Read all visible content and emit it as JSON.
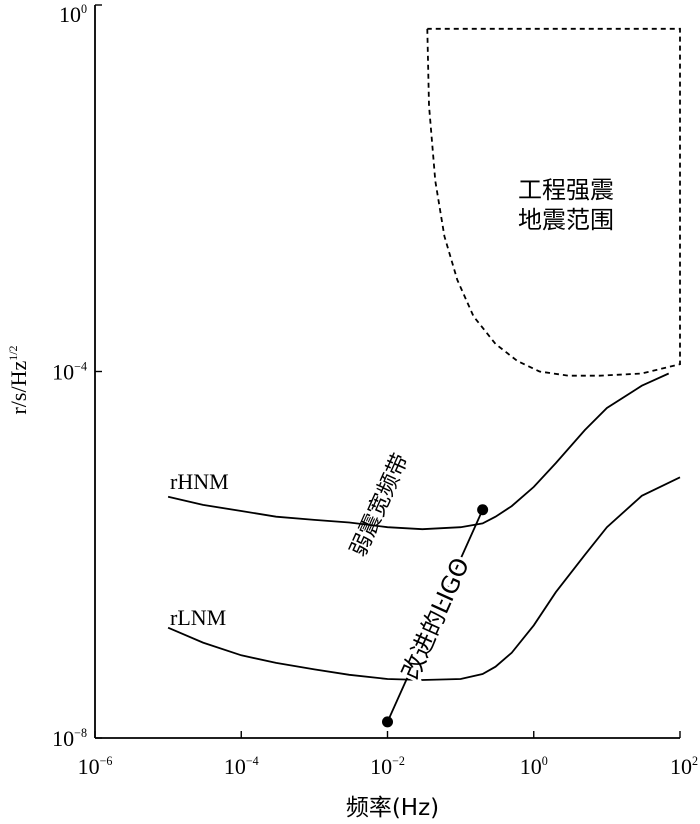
{
  "chart_data": {
    "type": "line",
    "xscale": "log",
    "yscale": "log",
    "xlim": [
      1e-06,
      100
    ],
    "ylim": [
      1e-08,
      1
    ],
    "xlabel": "频率(Hz)",
    "ylabel": "r/s/Hz^1/2",
    "ylabel_parts": {
      "base": "r/s/Hz",
      "sup": "1/2"
    },
    "xticks": [
      {
        "value": 1e-06,
        "base": "10",
        "exp": "−6"
      },
      {
        "value": 0.0001,
        "base": "10",
        "exp": "−4"
      },
      {
        "value": 0.01,
        "base": "10",
        "exp": "−2"
      },
      {
        "value": 1,
        "base": "10",
        "exp": "0"
      },
      {
        "value": 100,
        "base": "10",
        "exp": "2"
      }
    ],
    "yticks": [
      {
        "value": 1e-08,
        "base": "10",
        "exp": "−8"
      },
      {
        "value": 0.0001,
        "base": "10",
        "exp": "−4"
      },
      {
        "value": 1,
        "base": "10",
        "exp": "0"
      }
    ],
    "series": [
      {
        "name": "rHNM",
        "x": [
          1e-05,
          3e-05,
          0.0001,
          0.0003,
          0.001,
          0.003,
          0.01,
          0.03,
          0.1,
          0.2,
          0.3,
          0.5,
          1,
          2,
          5,
          10,
          30,
          70
        ],
        "y": [
          4.3e-06,
          3.5e-06,
          3e-06,
          2.6e-06,
          2.4e-06,
          2.25e-06,
          2e-06,
          1.9e-06,
          2e-06,
          2.2e-06,
          2.6e-06,
          3.4e-06,
          5.5e-06,
          1e-05,
          2.3e-05,
          4e-05,
          7e-05,
          9.5e-05
        ]
      },
      {
        "name": "rLNM",
        "x": [
          1e-05,
          3e-05,
          0.0001,
          0.0003,
          0.001,
          0.003,
          0.01,
          0.03,
          0.1,
          0.2,
          0.3,
          0.5,
          1,
          2,
          5,
          10,
          30,
          100
        ],
        "y": [
          1.6e-07,
          1.1e-07,
          8e-08,
          6.6e-08,
          5.6e-08,
          4.9e-08,
          4.4e-08,
          4.3e-08,
          4.4e-08,
          5e-08,
          6e-08,
          8.5e-08,
          1.7e-07,
          3.9e-07,
          1e-06,
          2e-06,
          4.4e-06,
          7e-06
        ]
      }
    ],
    "region": {
      "label_lines": [
        "工程强震",
        "地震范围"
      ],
      "boundary": {
        "x": [
          0.035,
          0.037,
          0.045,
          0.06,
          0.09,
          0.15,
          0.3,
          0.6,
          1.2,
          3,
          8,
          30,
          100,
          100,
          0.035
        ],
        "y": [
          0.55,
          0.08,
          0.012,
          0.003,
          0.001,
          0.0004,
          0.0002,
          0.00013,
          0.0001,
          9e-05,
          9e-05,
          9.5e-05,
          0.00012,
          0.55,
          0.55
        ]
      }
    },
    "ligo_segment": {
      "label": "改进的LIGO",
      "x": [
        0.01,
        0.2
      ],
      "y": [
        1.5e-08,
        3.1e-06
      ]
    },
    "band_label": "弱震宽频带"
  }
}
